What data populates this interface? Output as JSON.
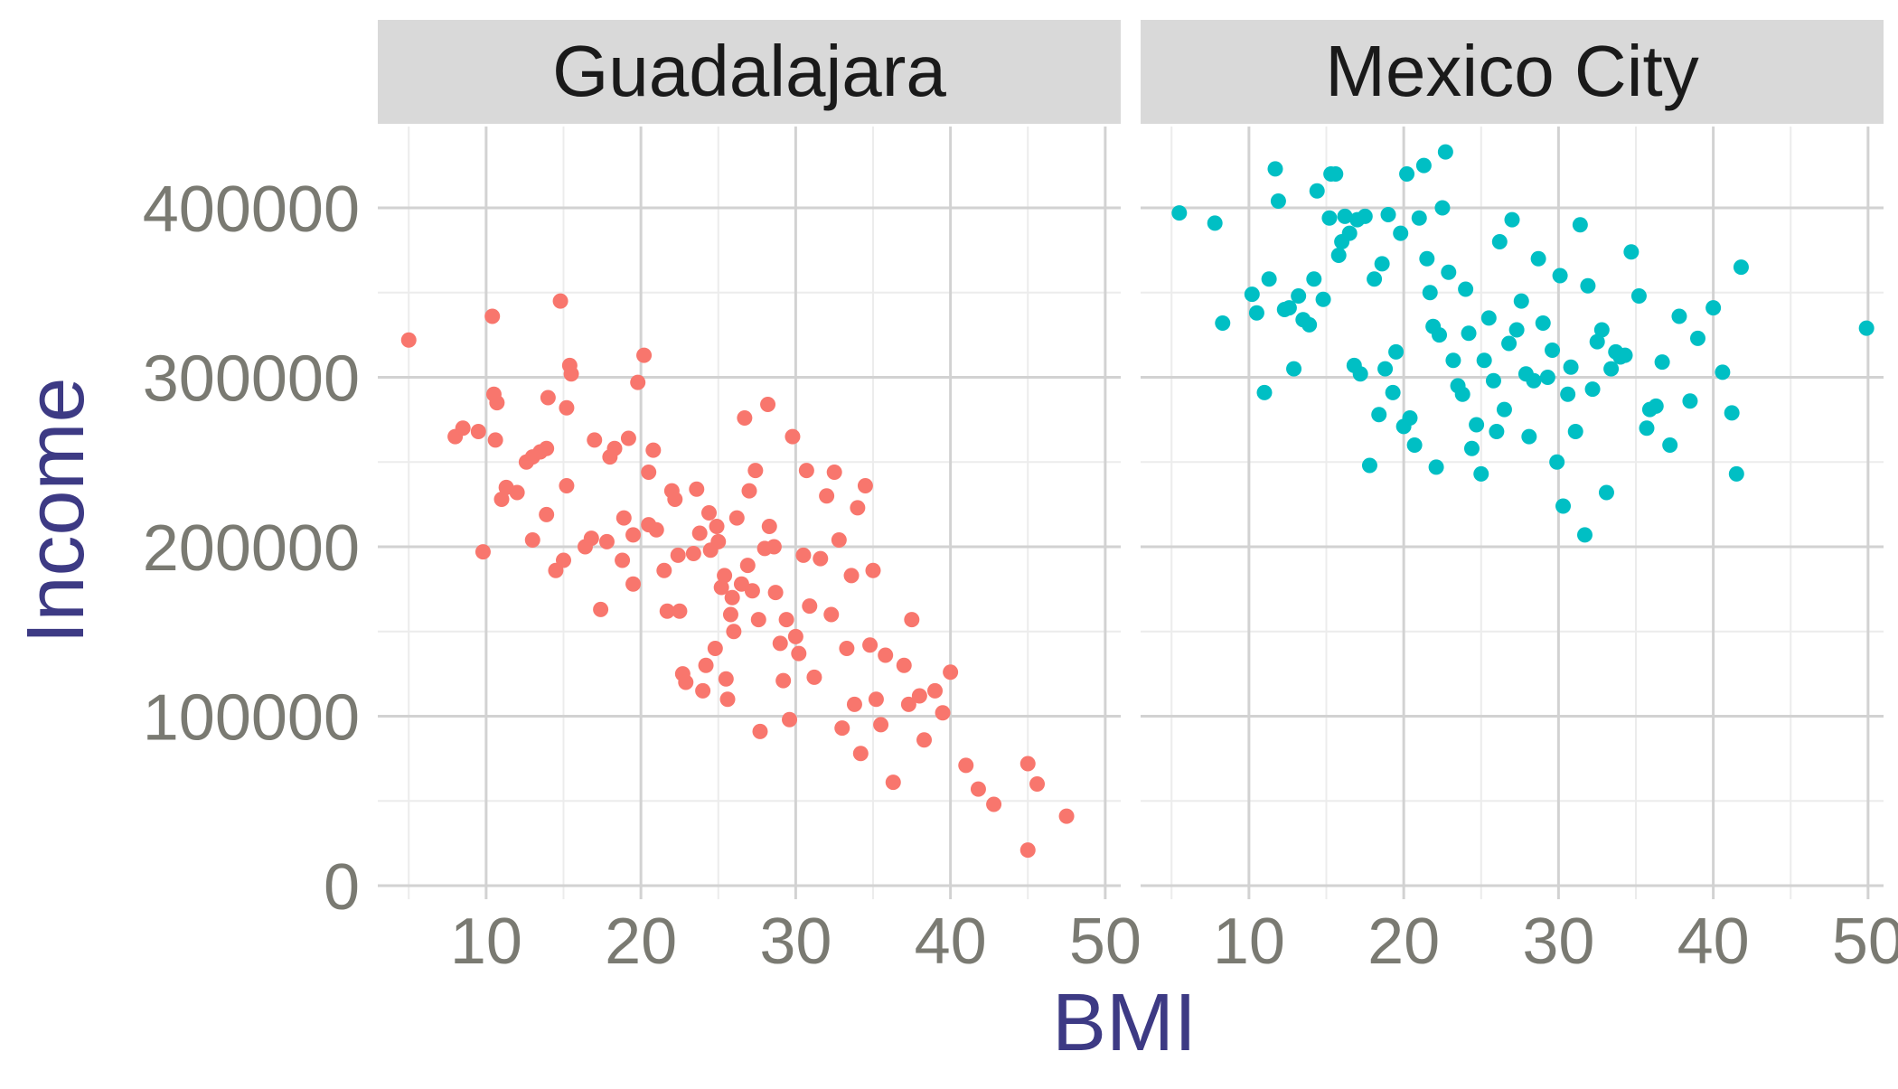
{
  "chart_data": {
    "type": "scatter",
    "xlabel": "BMI",
    "ylabel": "Income",
    "xlim": [
      3,
      51
    ],
    "ylim": [
      -8000,
      448000
    ],
    "x_ticks": [
      10,
      20,
      30,
      40,
      50
    ],
    "y_ticks": [
      0,
      100000,
      200000,
      300000,
      400000
    ],
    "grid": true,
    "legend": "none",
    "panels": [
      {
        "name": "Guadalajara",
        "color": "#f8766d",
        "points": [
          [
            5,
            322000
          ],
          [
            8,
            265000
          ],
          [
            8.5,
            270000
          ],
          [
            9.5,
            268000
          ],
          [
            9.8,
            197000
          ],
          [
            10.4,
            336000
          ],
          [
            10.5,
            290000
          ],
          [
            10.7,
            285000
          ],
          [
            10.6,
            263000
          ],
          [
            11,
            228000
          ],
          [
            11.3,
            235000
          ],
          [
            12,
            232000
          ],
          [
            12.6,
            250000
          ],
          [
            13,
            253000
          ],
          [
            13.5,
            256000
          ],
          [
            13.9,
            258000
          ],
          [
            13,
            204000
          ],
          [
            13.9,
            219000
          ],
          [
            14,
            288000
          ],
          [
            14.5,
            186000
          ],
          [
            14.8,
            345000
          ],
          [
            15,
            192000
          ],
          [
            15.2,
            282000
          ],
          [
            15.2,
            236000
          ],
          [
            15.5,
            302000
          ],
          [
            15.4,
            307000
          ],
          [
            16.4,
            200000
          ],
          [
            16.8,
            205000
          ],
          [
            17,
            263000
          ],
          [
            17.4,
            163000
          ],
          [
            17.8,
            203000
          ],
          [
            18,
            253000
          ],
          [
            18.3,
            258000
          ],
          [
            18.8,
            192000
          ],
          [
            18.9,
            217000
          ],
          [
            19.2,
            264000
          ],
          [
            19.5,
            207000
          ],
          [
            19.5,
            178000
          ],
          [
            19.8,
            297000
          ],
          [
            20.2,
            313000
          ],
          [
            20.5,
            244000
          ],
          [
            20.5,
            213000
          ],
          [
            20.8,
            257000
          ],
          [
            21,
            210000
          ],
          [
            21.5,
            186000
          ],
          [
            21.7,
            162000
          ],
          [
            22,
            233000
          ],
          [
            22.2,
            228000
          ],
          [
            22.4,
            195000
          ],
          [
            22.5,
            162000
          ],
          [
            22.7,
            125000
          ],
          [
            22.9,
            120000
          ],
          [
            23.4,
            196000
          ],
          [
            23.6,
            234000
          ],
          [
            23.8,
            208000
          ],
          [
            24,
            115000
          ],
          [
            24.2,
            130000
          ],
          [
            24.4,
            220000
          ],
          [
            24.5,
            198000
          ],
          [
            24.8,
            140000
          ],
          [
            24.9,
            212000
          ],
          [
            25,
            203000
          ],
          [
            25.2,
            176000
          ],
          [
            25.4,
            183000
          ],
          [
            25.5,
            122000
          ],
          [
            25.6,
            110000
          ],
          [
            25.8,
            160000
          ],
          [
            25.9,
            170000
          ],
          [
            26,
            150000
          ],
          [
            26.2,
            217000
          ],
          [
            26.5,
            178000
          ],
          [
            26.7,
            276000
          ],
          [
            26.9,
            189000
          ],
          [
            27,
            233000
          ],
          [
            27.2,
            174000
          ],
          [
            27.4,
            245000
          ],
          [
            27.6,
            157000
          ],
          [
            27.7,
            91000
          ],
          [
            28,
            199000
          ],
          [
            28.2,
            284000
          ],
          [
            28.3,
            212000
          ],
          [
            28.6,
            200000
          ],
          [
            28.7,
            173000
          ],
          [
            29,
            143000
          ],
          [
            29.2,
            121000
          ],
          [
            29.4,
            157000
          ],
          [
            29.6,
            98000
          ],
          [
            29.8,
            265000
          ],
          [
            30,
            147000
          ],
          [
            30.2,
            137000
          ],
          [
            30.5,
            195000
          ],
          [
            30.7,
            245000
          ],
          [
            30.9,
            165000
          ],
          [
            31.2,
            123000
          ],
          [
            31.6,
            193000
          ],
          [
            32,
            230000
          ],
          [
            32.3,
            160000
          ],
          [
            32.5,
            244000
          ],
          [
            32.8,
            204000
          ],
          [
            33,
            93000
          ],
          [
            33.3,
            140000
          ],
          [
            33.6,
            183000
          ],
          [
            33.8,
            107000
          ],
          [
            34,
            223000
          ],
          [
            34.2,
            78000
          ],
          [
            34.5,
            236000
          ],
          [
            34.8,
            142000
          ],
          [
            35,
            186000
          ],
          [
            35.2,
            110000
          ],
          [
            35.5,
            95000
          ],
          [
            35.8,
            136000
          ],
          [
            36.3,
            61000
          ],
          [
            37,
            130000
          ],
          [
            37.3,
            107000
          ],
          [
            37.5,
            157000
          ],
          [
            38,
            112000
          ],
          [
            38.3,
            86000
          ],
          [
            39,
            115000
          ],
          [
            39.5,
            102000
          ],
          [
            40,
            126000
          ],
          [
            41,
            71000
          ],
          [
            41.8,
            57000
          ],
          [
            42.8,
            48000
          ],
          [
            45,
            72000
          ],
          [
            45,
            21000
          ],
          [
            45.6,
            60000
          ],
          [
            47.5,
            41000
          ]
        ]
      },
      {
        "name": "Mexico City",
        "color": "#00bfc4",
        "points": [
          [
            5.5,
            397000
          ],
          [
            7.8,
            391000
          ],
          [
            8.3,
            332000
          ],
          [
            10.2,
            349000
          ],
          [
            10.5,
            338000
          ],
          [
            11,
            291000
          ],
          [
            11.3,
            358000
          ],
          [
            11.7,
            423000
          ],
          [
            11.9,
            404000
          ],
          [
            12.3,
            340000
          ],
          [
            12.6,
            341000
          ],
          [
            12.9,
            305000
          ],
          [
            13.2,
            348000
          ],
          [
            13.5,
            334000
          ],
          [
            13.9,
            331000
          ],
          [
            14.2,
            358000
          ],
          [
            14.4,
            410000
          ],
          [
            14.8,
            346000
          ],
          [
            15.2,
            394000
          ],
          [
            15.3,
            420000
          ],
          [
            15.6,
            420000
          ],
          [
            15.8,
            372000
          ],
          [
            16,
            380000
          ],
          [
            16.2,
            395000
          ],
          [
            16.5,
            385000
          ],
          [
            16.8,
            307000
          ],
          [
            17,
            393000
          ],
          [
            17.2,
            302000
          ],
          [
            17.5,
            395000
          ],
          [
            17.8,
            248000
          ],
          [
            18.1,
            358000
          ],
          [
            18.4,
            278000
          ],
          [
            18.6,
            367000
          ],
          [
            18.8,
            305000
          ],
          [
            19,
            396000
          ],
          [
            19.3,
            291000
          ],
          [
            19.5,
            315000
          ],
          [
            19.8,
            385000
          ],
          [
            20,
            271000
          ],
          [
            20.2,
            420000
          ],
          [
            20.4,
            276000
          ],
          [
            20.7,
            260000
          ],
          [
            21,
            394000
          ],
          [
            21.3,
            425000
          ],
          [
            21.5,
            370000
          ],
          [
            21.7,
            350000
          ],
          [
            21.9,
            330000
          ],
          [
            22.1,
            247000
          ],
          [
            22.3,
            325000
          ],
          [
            22.5,
            400000
          ],
          [
            22.7,
            433000
          ],
          [
            22.9,
            362000
          ],
          [
            23.2,
            310000
          ],
          [
            23.5,
            295000
          ],
          [
            23.8,
            290000
          ],
          [
            24,
            352000
          ],
          [
            24.2,
            326000
          ],
          [
            24.4,
            258000
          ],
          [
            24.7,
            272000
          ],
          [
            25,
            243000
          ],
          [
            25.2,
            310000
          ],
          [
            25.5,
            335000
          ],
          [
            25.8,
            298000
          ],
          [
            26,
            268000
          ],
          [
            26.2,
            380000
          ],
          [
            26.5,
            281000
          ],
          [
            26.8,
            320000
          ],
          [
            27,
            393000
          ],
          [
            27.3,
            328000
          ],
          [
            27.6,
            345000
          ],
          [
            27.9,
            302000
          ],
          [
            28.1,
            265000
          ],
          [
            28.4,
            298000
          ],
          [
            28.7,
            370000
          ],
          [
            29,
            332000
          ],
          [
            29.3,
            300000
          ],
          [
            29.6,
            316000
          ],
          [
            29.9,
            250000
          ],
          [
            30.1,
            360000
          ],
          [
            30.3,
            224000
          ],
          [
            30.6,
            290000
          ],
          [
            30.8,
            306000
          ],
          [
            31.1,
            268000
          ],
          [
            31.4,
            390000
          ],
          [
            31.7,
            207000
          ],
          [
            31.9,
            354000
          ],
          [
            32.2,
            293000
          ],
          [
            32.5,
            321000
          ],
          [
            32.8,
            328000
          ],
          [
            33.1,
            232000
          ],
          [
            33.4,
            305000
          ],
          [
            33.7,
            315000
          ],
          [
            34,
            312000
          ],
          [
            34.3,
            313000
          ],
          [
            34.7,
            374000
          ],
          [
            35.2,
            348000
          ],
          [
            35.7,
            270000
          ],
          [
            35.9,
            281000
          ],
          [
            36.3,
            283000
          ],
          [
            36.7,
            309000
          ],
          [
            37.2,
            260000
          ],
          [
            37.8,
            336000
          ],
          [
            38.5,
            286000
          ],
          [
            39,
            323000
          ],
          [
            40,
            341000
          ],
          [
            40.6,
            303000
          ],
          [
            41.2,
            279000
          ],
          [
            41.5,
            243000
          ],
          [
            41.8,
            365000
          ],
          [
            49.9,
            329000
          ]
        ]
      }
    ]
  }
}
